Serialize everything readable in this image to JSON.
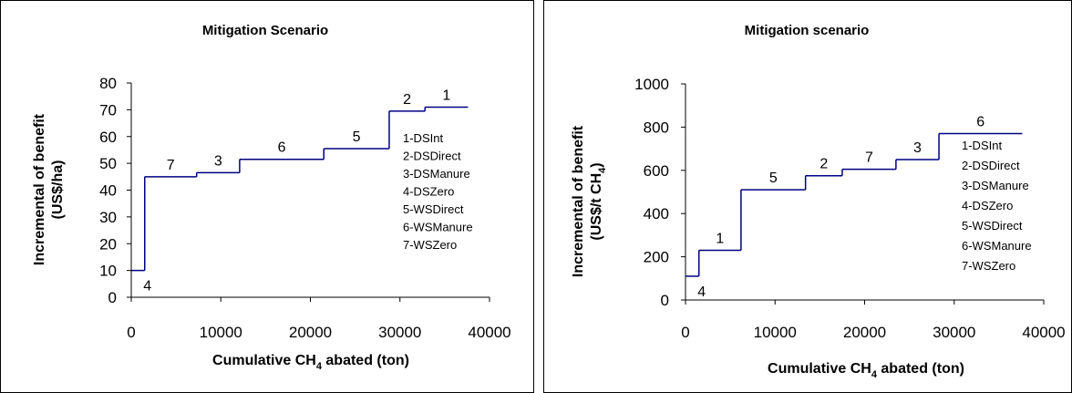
{
  "chart_data": [
    {
      "type": "line",
      "step": true,
      "title": "Mitigation Scenario",
      "xlabel_pre": "Cumulative CH",
      "xlabel_sub": "4",
      "xlabel_post": " abated (ton)",
      "ylabel_line1": "Incremental of benefit",
      "ylabel_line2": "(US$/ha)",
      "xlim": [
        0,
        40000
      ],
      "ylim": [
        0,
        80
      ],
      "xticks": [
        0,
        10000,
        20000,
        30000,
        40000
      ],
      "yticks": [
        0,
        10,
        20,
        30,
        40,
        50,
        60,
        70,
        80
      ],
      "steps": [
        {
          "label": "4",
          "x0": 0,
          "x1": 1500,
          "y": 10
        },
        {
          "label": "7",
          "x0": 1500,
          "x1": 7300,
          "y": 45
        },
        {
          "label": "3",
          "x0": 7300,
          "x1": 12100,
          "y": 46.5
        },
        {
          "label": "6",
          "x0": 12100,
          "x1": 21500,
          "y": 51.5
        },
        {
          "label": "5",
          "x0": 21500,
          "x1": 28800,
          "y": 55.5
        },
        {
          "label": "2",
          "x0": 28800,
          "x1": 32800,
          "y": 69.5
        },
        {
          "label": "1",
          "x0": 32800,
          "x1": 37600,
          "y": 71
        }
      ],
      "legend": [
        "1-DSInt",
        "2-DSDirect",
        "3-DSManure",
        "4-DSZero",
        "5-WSDirect",
        "6-WSManure",
        "7-WSZero"
      ],
      "color": "#000080",
      "grid": false
    },
    {
      "type": "line",
      "step": true,
      "title": "Mitigation scenario",
      "xlabel_pre": "Cumulative CH",
      "xlabel_sub": "4",
      "xlabel_post": " abated (ton)",
      "ylabel_line1": "Incremental of benefit",
      "ylabel_line2_pre": "(US$/t CH",
      "ylabel_line2_sub": "4",
      "ylabel_line2_post": ")",
      "xlim": [
        0,
        40000
      ],
      "ylim": [
        0,
        1000
      ],
      "xticks": [
        0,
        10000,
        20000,
        30000,
        40000
      ],
      "yticks": [
        0,
        200,
        400,
        600,
        800,
        1000
      ],
      "steps": [
        {
          "label": "4",
          "x0": 0,
          "x1": 1500,
          "y": 110
        },
        {
          "label": "1",
          "x0": 1500,
          "x1": 6200,
          "y": 230
        },
        {
          "label": "5",
          "x0": 6200,
          "x1": 13400,
          "y": 510
        },
        {
          "label": "2",
          "x0": 13400,
          "x1": 17500,
          "y": 575
        },
        {
          "label": "7",
          "x0": 17500,
          "x1": 23500,
          "y": 605
        },
        {
          "label": "3",
          "x0": 23500,
          "x1": 28300,
          "y": 650
        },
        {
          "label": "6",
          "x0": 28300,
          "x1": 37600,
          "y": 770
        }
      ],
      "legend": [
        "1-DSInt",
        "2-DSDirect",
        "3-DSManure",
        "4-DSZero",
        "5-WSDirect",
        "6-WSManure",
        "7-WSZero"
      ],
      "color": "#000080",
      "grid": false
    }
  ]
}
